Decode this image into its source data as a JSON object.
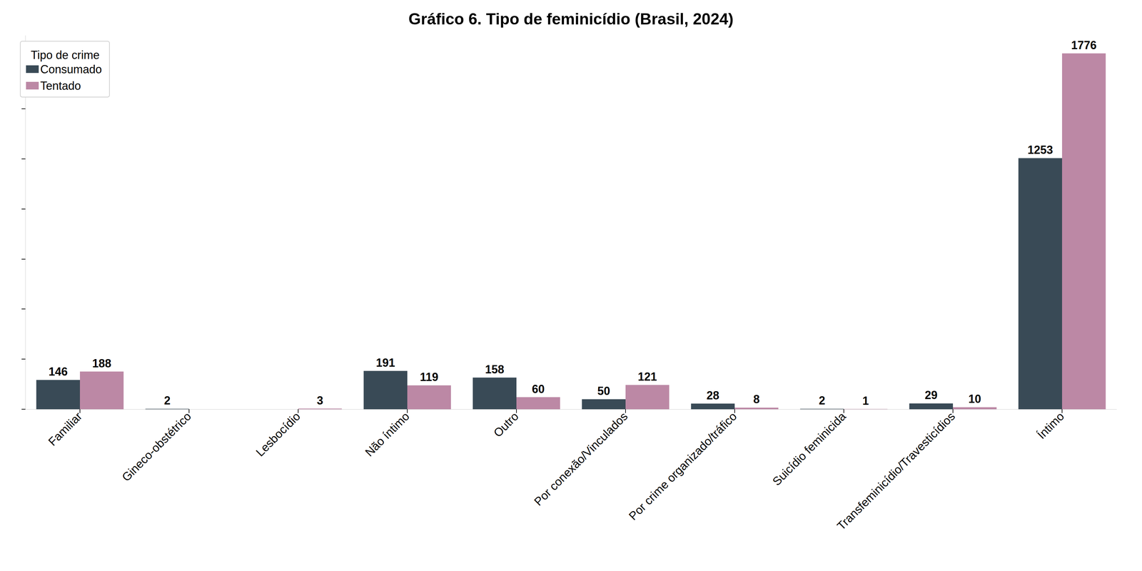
{
  "chart_data": {
    "type": "bar",
    "title": "Gráfico 6. Tipo de feminicídio (Brasil, 2024)",
    "categories": [
      "Familiar",
      "Gineco-obstétrico",
      "Lesbocídio",
      "Não íntimo",
      "Outro",
      "Por conexão/Vinculados",
      "Por crime organizado/tráfico",
      "Suicídio feminicida",
      "Transfeminicídio/Travesticídios",
      "Íntimo"
    ],
    "series": [
      {
        "name": "Consumado",
        "color": "#394a56",
        "values": [
          146,
          2,
          null,
          191,
          158,
          50,
          28,
          2,
          29,
          1253
        ]
      },
      {
        "name": "Tentado",
        "color": "#bc88a5",
        "values": [
          188,
          null,
          3,
          119,
          60,
          121,
          8,
          1,
          10,
          1776
        ]
      }
    ],
    "legend_title": "Tipo de crime",
    "legend": "upper left",
    "ylim": [
      0,
      1865
    ],
    "yticks": [
      0,
      250,
      500,
      750,
      1000,
      1250,
      1500,
      1750
    ],
    "grid": false,
    "data_labels": true,
    "tick_labels": "x"
  }
}
